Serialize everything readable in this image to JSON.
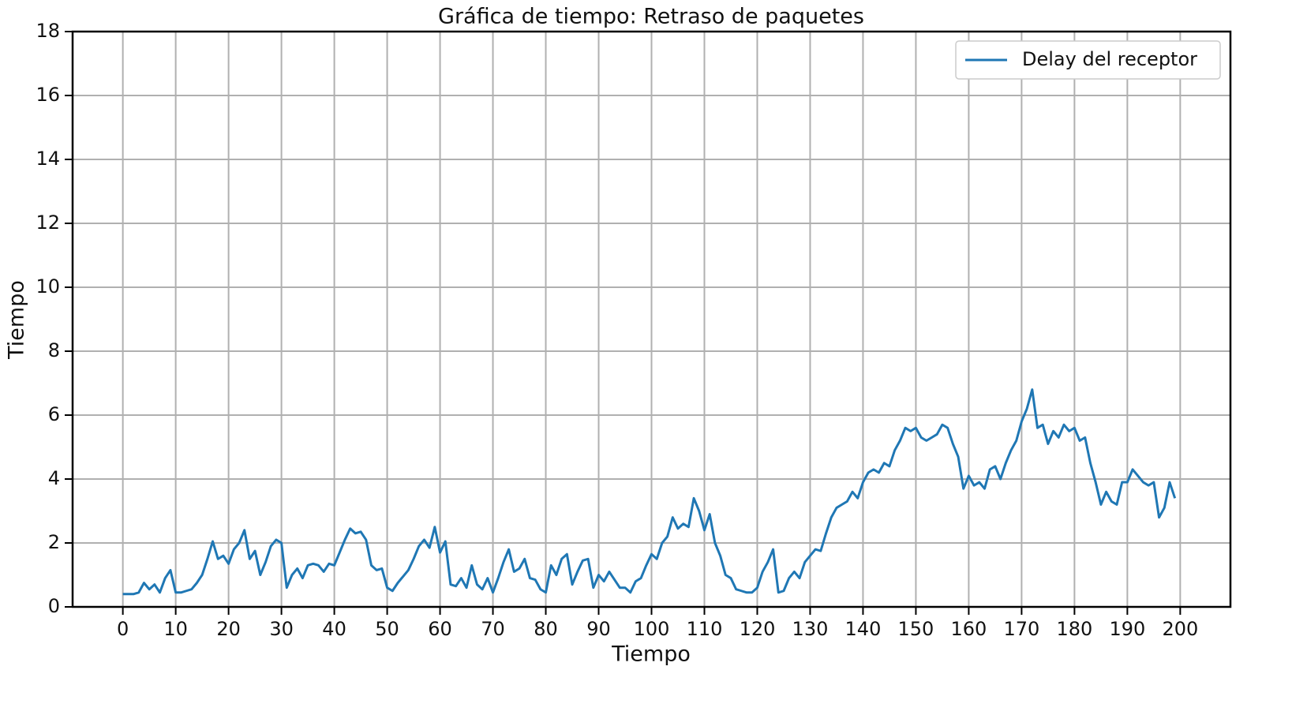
{
  "chart_data": {
    "type": "line",
    "title": "Gráfica de tiempo: Retraso de paquetes",
    "x_label": "Tiempo",
    "y_label": "Tiempo",
    "x": [
      0,
      1,
      2,
      3,
      4,
      5,
      6,
      7,
      8,
      9,
      10,
      11,
      12,
      13,
      14,
      15,
      16,
      17,
      18,
      19,
      20,
      21,
      22,
      23,
      24,
      25,
      26,
      27,
      28,
      29,
      30,
      31,
      32,
      33,
      34,
      35,
      36,
      37,
      38,
      39,
      40,
      41,
      42,
      43,
      44,
      45,
      46,
      47,
      48,
      49,
      50,
      51,
      52,
      53,
      54,
      55,
      56,
      57,
      58,
      59,
      60,
      61,
      62,
      63,
      64,
      65,
      66,
      67,
      68,
      69,
      70,
      71,
      72,
      73,
      74,
      75,
      76,
      77,
      78,
      79,
      80,
      81,
      82,
      83,
      84,
      85,
      86,
      87,
      88,
      89,
      90,
      91,
      92,
      93,
      94,
      95,
      96,
      97,
      98,
      99,
      100,
      101,
      102,
      103,
      104,
      105,
      106,
      107,
      108,
      109,
      110,
      111,
      112,
      113,
      114,
      115,
      116,
      117,
      118,
      119,
      120,
      121,
      122,
      123,
      124,
      125,
      126,
      127,
      128,
      129,
      130,
      131,
      132,
      133,
      134,
      135,
      136,
      137,
      138,
      139,
      140,
      141,
      142,
      143,
      144,
      145,
      146,
      147,
      148,
      149,
      150,
      151,
      152,
      153,
      154,
      155,
      156,
      157,
      158,
      159,
      160,
      161,
      162,
      163,
      164,
      165,
      166,
      167,
      168,
      169,
      170,
      171,
      172,
      173,
      174,
      175,
      176,
      177,
      178,
      179,
      180,
      181,
      182,
      183,
      184,
      185,
      186,
      187,
      188,
      189,
      190,
      191,
      192,
      193,
      194,
      195,
      196,
      197,
      198,
      199
    ],
    "series": [
      {
        "name": "Delay del receptor",
        "color": "#1f77b4",
        "values": [
          0.4,
          0.4,
          0.4,
          0.45,
          0.75,
          0.55,
          0.7,
          0.45,
          0.9,
          1.15,
          0.45,
          0.45,
          0.5,
          0.55,
          0.75,
          1.0,
          1.5,
          2.05,
          1.5,
          1.6,
          1.35,
          1.8,
          2.0,
          2.4,
          1.5,
          1.75,
          1.0,
          1.4,
          1.9,
          2.1,
          2.0,
          0.6,
          1.0,
          1.2,
          0.9,
          1.3,
          1.35,
          1.3,
          1.1,
          1.35,
          1.3,
          1.7,
          2.1,
          2.45,
          2.3,
          2.35,
          2.1,
          1.3,
          1.15,
          1.2,
          0.6,
          0.5,
          0.75,
          0.95,
          1.15,
          1.5,
          1.9,
          2.1,
          1.85,
          2.5,
          1.7,
          2.05,
          0.7,
          0.65,
          0.9,
          0.6,
          1.3,
          0.7,
          0.55,
          0.9,
          0.45,
          0.9,
          1.4,
          1.8,
          1.1,
          1.2,
          1.5,
          0.9,
          0.85,
          0.55,
          0.45,
          1.3,
          1.0,
          1.5,
          1.65,
          0.7,
          1.1,
          1.45,
          1.5,
          0.6,
          1.0,
          0.8,
          1.1,
          0.85,
          0.6,
          0.6,
          0.45,
          0.8,
          0.9,
          1.3,
          1.65,
          1.5,
          2.0,
          2.2,
          2.8,
          2.45,
          2.6,
          2.5,
          3.4,
          3.0,
          2.4,
          2.9,
          2.0,
          1.6,
          1.0,
          0.9,
          0.55,
          0.5,
          0.45,
          0.45,
          0.6,
          1.1,
          1.4,
          1.8,
          0.45,
          0.5,
          0.9,
          1.1,
          0.9,
          1.4,
          1.6,
          1.8,
          1.75,
          2.3,
          2.8,
          3.1,
          3.2,
          3.3,
          3.6,
          3.4,
          3.9,
          4.2,
          4.3,
          4.2,
          4.5,
          4.4,
          4.9,
          5.2,
          5.6,
          5.5,
          5.6,
          5.3,
          5.2,
          5.3,
          5.4,
          5.7,
          5.6,
          5.1,
          4.7,
          3.7,
          4.1,
          3.8,
          3.9,
          3.7,
          4.3,
          4.4,
          4.0,
          4.5,
          4.9,
          5.2,
          5.8,
          6.2,
          6.8,
          5.6,
          5.7,
          5.1,
          5.5,
          5.3,
          5.7,
          5.5,
          5.6,
          5.2,
          5.3,
          4.5,
          3.9,
          3.2,
          3.6,
          3.3,
          3.2,
          3.9,
          3.9,
          4.3,
          4.1,
          3.9,
          3.8,
          3.9,
          2.8,
          3.1,
          3.9,
          3.4
        ]
      }
    ],
    "xlim": [
      -9.5,
      209.5
    ],
    "ylim": [
      0,
      18
    ],
    "xticks": [
      0,
      10,
      20,
      30,
      40,
      50,
      60,
      70,
      80,
      90,
      100,
      110,
      120,
      130,
      140,
      150,
      160,
      170,
      180,
      190,
      200
    ],
    "yticks": [
      0,
      2,
      4,
      6,
      8,
      10,
      12,
      14,
      16,
      18
    ],
    "grid": true,
    "legend": "upper right"
  }
}
